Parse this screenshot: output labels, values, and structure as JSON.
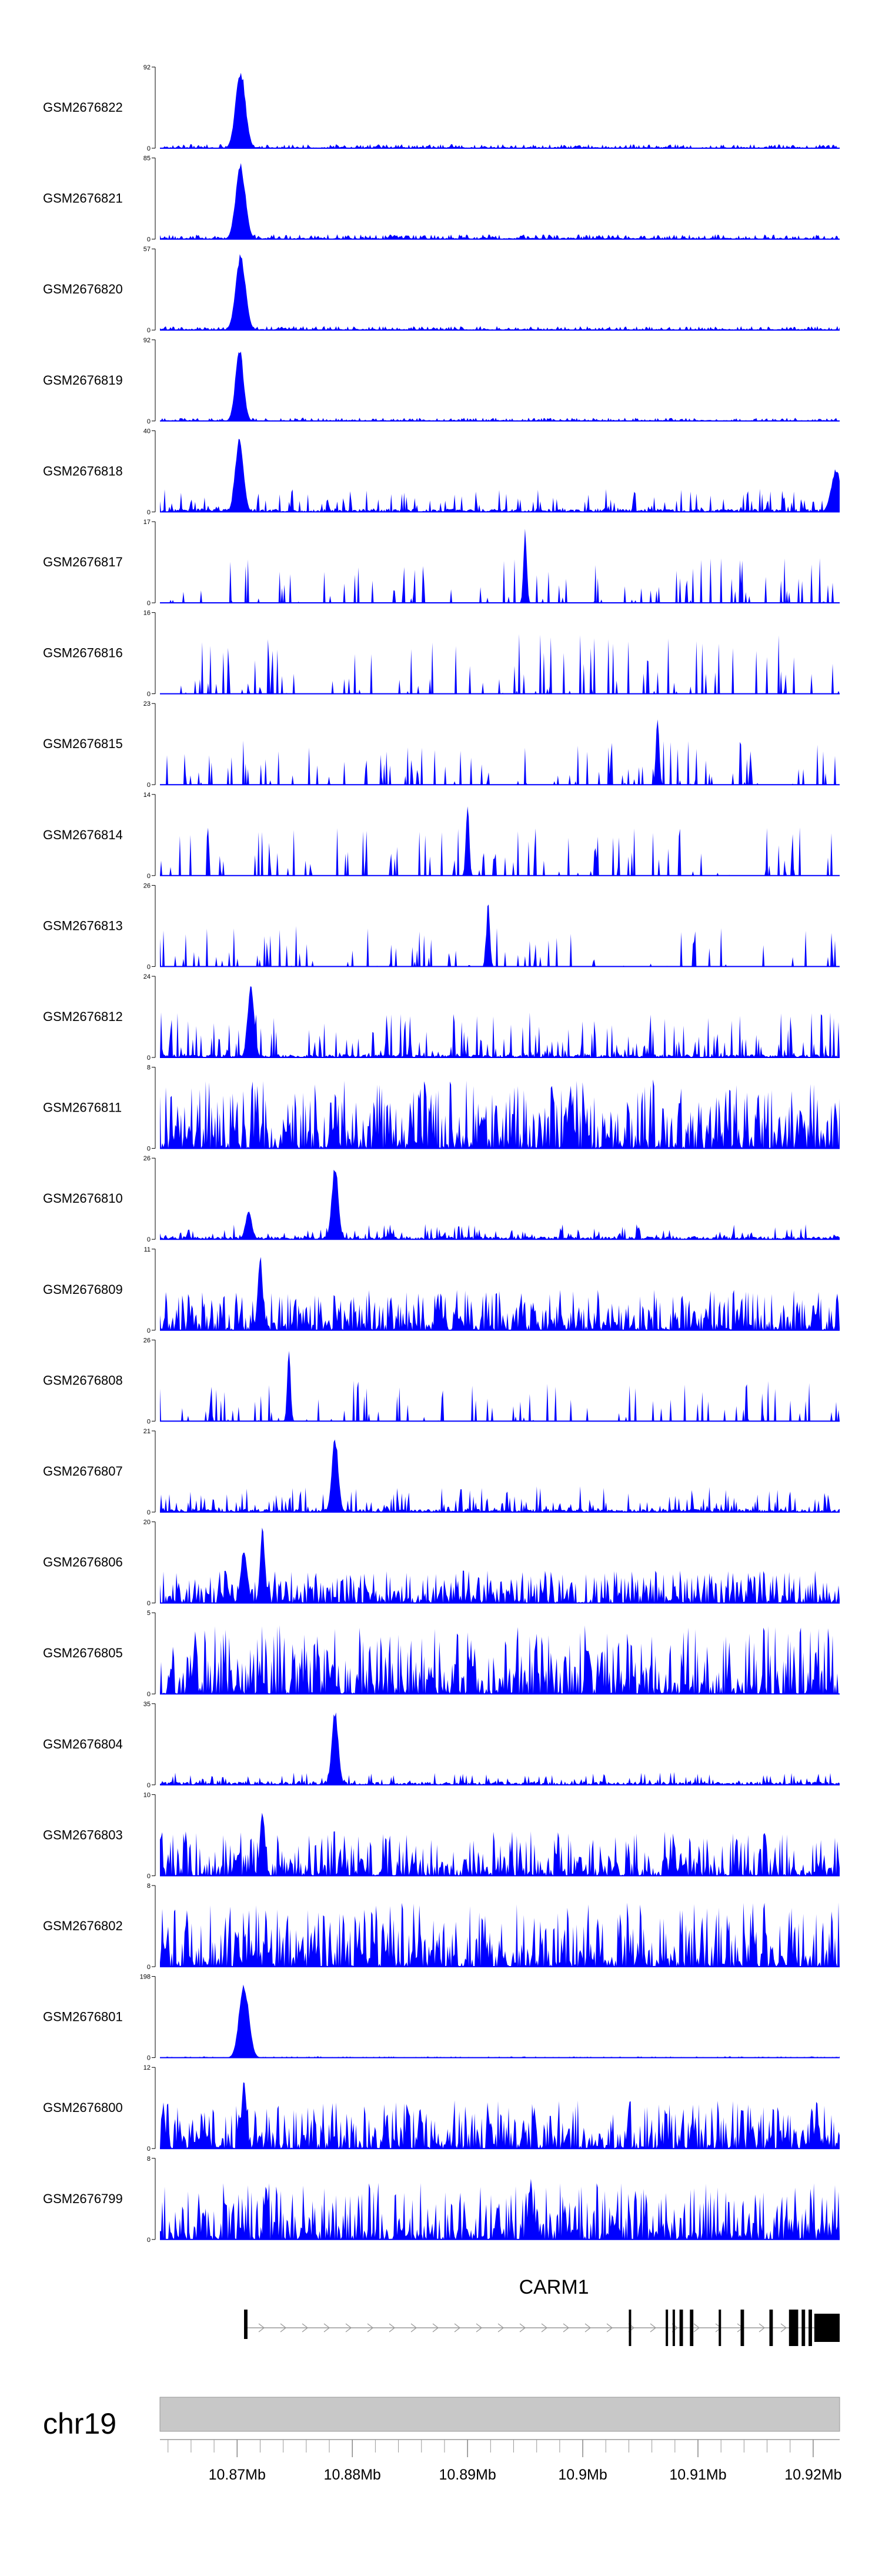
{
  "chart_data": {
    "type": "area",
    "title": "",
    "region": {
      "chrom": "chr19",
      "start_mb": 10.8633,
      "end_mb": 10.9223
    },
    "axis_tick_labels": [
      "10.87Mb",
      "10.88Mb",
      "10.89Mb",
      "10.9Mb",
      "10.91Mb",
      "10.92Mb"
    ],
    "axis_ticks_mb": [
      10.87,
      10.88,
      10.89,
      10.9,
      10.91,
      10.92
    ],
    "color": "#0000ff",
    "tracks": [
      {
        "name": "GSM2676822",
        "ymax": "92",
        "peaks": [
          [
            10.8703,
            1.0,
            0.0006
          ]
        ],
        "noise": 0.05,
        "style": "dense"
      },
      {
        "name": "GSM2676821",
        "ymax": "85",
        "peaks": [
          [
            10.8703,
            0.95,
            0.0006
          ]
        ],
        "noise": 0.06,
        "style": "dense"
      },
      {
        "name": "GSM2676820",
        "ymax": "57",
        "peaks": [
          [
            10.8703,
            0.97,
            0.0006
          ]
        ],
        "noise": 0.05,
        "style": "dense"
      },
      {
        "name": "GSM2676819",
        "ymax": "92",
        "peaks": [
          [
            10.8702,
            0.93,
            0.0005
          ]
        ],
        "noise": 0.04,
        "style": "dense"
      },
      {
        "name": "GSM2676818",
        "ymax": "40",
        "peaks": [
          [
            10.8702,
            0.95,
            0.0005
          ],
          [
            10.922,
            0.55,
            0.0006
          ]
        ],
        "noise": 0.18,
        "style": "spiky"
      },
      {
        "name": "GSM2676817",
        "ymax": "17",
        "peaks": [
          [
            10.895,
            0.95,
            0.0002
          ]
        ],
        "noise": 0.55,
        "style": "sparse"
      },
      {
        "name": "GSM2676816",
        "ymax": "16",
        "peaks": [],
        "noise": 0.75,
        "style": "sparse"
      },
      {
        "name": "GSM2676815",
        "ymax": "23",
        "peaks": [
          [
            10.9065,
            0.9,
            0.0002
          ]
        ],
        "noise": 0.55,
        "style": "sparse"
      },
      {
        "name": "GSM2676814",
        "ymax": "14",
        "peaks": [
          [
            10.89,
            0.95,
            0.0002
          ]
        ],
        "noise": 0.6,
        "style": "sparse"
      },
      {
        "name": "GSM2676813",
        "ymax": "26",
        "peaks": [
          [
            10.8918,
            0.85,
            0.0002
          ]
        ],
        "noise": 0.5,
        "style": "sparse"
      },
      {
        "name": "GSM2676812",
        "ymax": "24",
        "peaks": [
          [
            10.8712,
            0.95,
            0.0004
          ]
        ],
        "noise": 0.35,
        "style": "spiky"
      },
      {
        "name": "GSM2676811",
        "ymax": "8",
        "peaks": [],
        "noise": 0.85,
        "style": "busy"
      },
      {
        "name": "GSM2676810",
        "ymax": "26",
        "peaks": [
          [
            10.8785,
            0.95,
            0.0004
          ],
          [
            10.871,
            0.35,
            0.0004
          ]
        ],
        "noise": 0.12,
        "style": "spiky"
      },
      {
        "name": "GSM2676809",
        "ymax": "11",
        "peaks": [
          [
            10.872,
            0.95,
            0.0003
          ]
        ],
        "noise": 0.5,
        "style": "busy"
      },
      {
        "name": "GSM2676808",
        "ymax": "26",
        "peaks": [
          [
            10.8745,
            0.95,
            0.0002
          ]
        ],
        "noise": 0.5,
        "style": "sparse"
      },
      {
        "name": "GSM2676807",
        "ymax": "21",
        "peaks": [
          [
            10.8785,
            0.95,
            0.0004
          ]
        ],
        "noise": 0.2,
        "style": "spiky"
      },
      {
        "name": "GSM2676806",
        "ymax": "20",
        "peaks": [
          [
            10.8722,
            0.95,
            0.0003
          ],
          [
            10.8706,
            0.7,
            0.0004
          ]
        ],
        "noise": 0.4,
        "style": "busy"
      },
      {
        "name": "GSM2676805",
        "ymax": "5",
        "peaks": [],
        "noise": 0.85,
        "style": "busy"
      },
      {
        "name": "GSM2676804",
        "ymax": "35",
        "peaks": [
          [
            10.8785,
            0.95,
            0.0004
          ]
        ],
        "noise": 0.1,
        "style": "spiky"
      },
      {
        "name": "GSM2676803",
        "ymax": "10",
        "peaks": [
          [
            10.8722,
            0.85,
            0.0003
          ]
        ],
        "noise": 0.55,
        "style": "busy"
      },
      {
        "name": "GSM2676802",
        "ymax": "8",
        "peaks": [],
        "noise": 0.8,
        "style": "busy"
      },
      {
        "name": "GSM2676801",
        "ymax": "198",
        "peaks": [
          [
            10.8706,
            0.95,
            0.0006
          ]
        ],
        "noise": 0.015,
        "style": "dense"
      },
      {
        "name": "GSM2676800",
        "ymax": "12",
        "peaks": [
          [
            10.8706,
            0.9,
            0.0003
          ]
        ],
        "noise": 0.6,
        "style": "busy"
      },
      {
        "name": "GSM2676799",
        "ymax": "8",
        "peaks": [
          [
            10.8955,
            0.85,
            0.0002
          ]
        ],
        "noise": 0.7,
        "style": "busy"
      }
    ],
    "y_min_label": "0",
    "gene": {
      "name": "CARM1",
      "start_mb": 10.8706,
      "end_mb": 10.9223,
      "strand": "+",
      "exons_mb": [
        [
          10.8706,
          10.8709
        ],
        [
          10.904,
          10.9042
        ],
        [
          10.9072,
          10.9074
        ],
        [
          10.9078,
          10.908
        ],
        [
          10.9084,
          10.9087
        ],
        [
          10.9093,
          10.9096
        ],
        [
          10.9118,
          10.912
        ],
        [
          10.9137,
          10.914
        ],
        [
          10.9162,
          10.9165
        ],
        [
          10.9179,
          10.9187
        ],
        [
          10.919,
          10.9193
        ],
        [
          10.9196,
          10.9199
        ],
        [
          10.9201,
          10.9223
        ]
      ]
    }
  }
}
